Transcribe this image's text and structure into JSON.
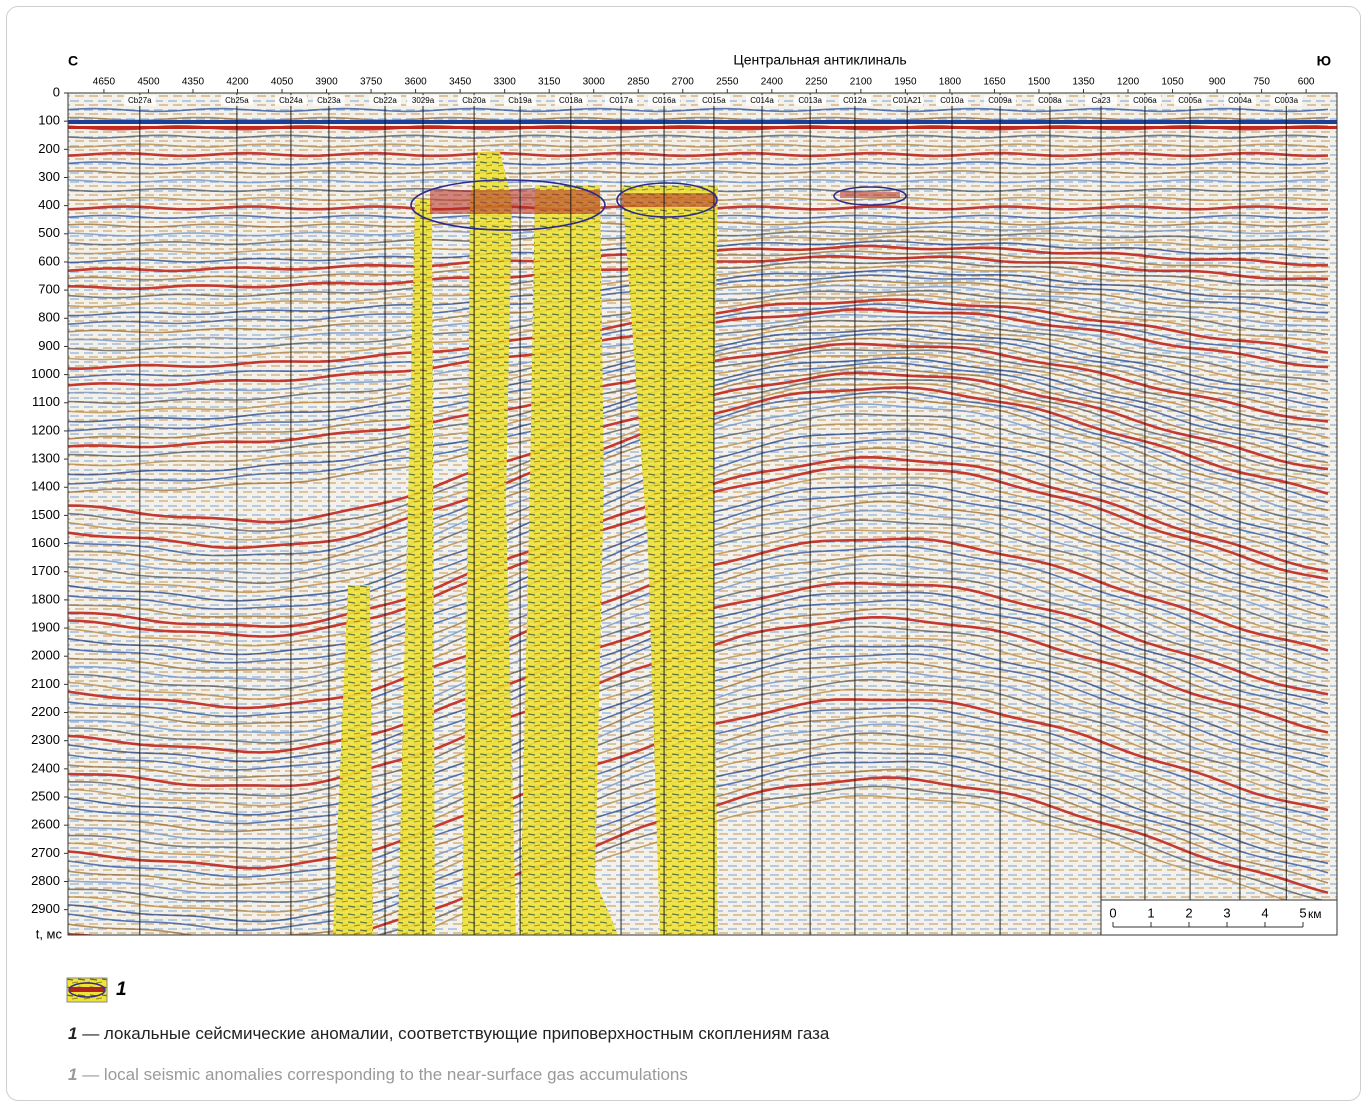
{
  "figure": {
    "left_label": "С",
    "right_label": "Ю",
    "title": "Центральная антиклиналь",
    "x_ticks": [
      4650,
      4500,
      4350,
      4200,
      4050,
      3900,
      3750,
      3600,
      3450,
      3300,
      3150,
      3000,
      2850,
      2700,
      2550,
      2400,
      2250,
      2100,
      1950,
      1800,
      1650,
      1500,
      1350,
      1200,
      1050,
      900,
      750,
      600
    ],
    "xlim": [
      4771,
      496
    ],
    "y_ticks": [
      0,
      100,
      200,
      300,
      400,
      500,
      600,
      700,
      800,
      900,
      1000,
      1100,
      1200,
      1300,
      1400,
      1500,
      1600,
      1700,
      1800,
      1900,
      2000,
      2100,
      2200,
      2300,
      2400,
      2500,
      2600,
      2700,
      2800,
      2900
    ],
    "ylim": [
      0,
      2990
    ],
    "y_label": "t, мс",
    "wells": [
      {
        "label": "Cb27a",
        "x": 4529
      },
      {
        "label": "Cb25a",
        "x": 4202
      },
      {
        "label": "Cb24a",
        "x": 4020
      },
      {
        "label": "Cb23a",
        "x": 3892
      },
      {
        "label": "Cb22a",
        "x": 3703
      },
      {
        "label": "3029a",
        "x": 3575
      },
      {
        "label": "Cb20a",
        "x": 3403
      },
      {
        "label": "Cb19a",
        "x": 3248
      },
      {
        "label": "C018a",
        "x": 3077
      },
      {
        "label": "C017a",
        "x": 2908
      },
      {
        "label": "C016a",
        "x": 2763
      },
      {
        "label": "C015a",
        "x": 2595
      },
      {
        "label": "C014a",
        "x": 2433
      },
      {
        "label": "C013a",
        "x": 2271
      },
      {
        "label": "C012a",
        "x": 2120
      },
      {
        "label": "C01A21",
        "x": 1944
      },
      {
        "label": "C010a",
        "x": 1793
      },
      {
        "label": "C009a",
        "x": 1631
      },
      {
        "label": "C008a",
        "x": 1463
      },
      {
        "label": "Ca23",
        "x": 1291
      },
      {
        "label": "C006a",
        "x": 1143
      },
      {
        "label": "C005a",
        "x": 991
      },
      {
        "label": "C004a",
        "x": 823
      },
      {
        "label": "C003a",
        "x": 667
      }
    ],
    "scale_bar": {
      "ticks": [
        0,
        1,
        2,
        3,
        4,
        5
      ],
      "unit": "км"
    },
    "legend": {
      "label": "1"
    },
    "captions": [
      {
        "number": "1",
        "text": "— локальные сейсмические аномалии, соответствующие приповерхностным скоплениям газа"
      },
      {
        "number": "1",
        "text": "— local seismic anomalies corresponding to the near-surface gas accumulations"
      }
    ]
  }
}
